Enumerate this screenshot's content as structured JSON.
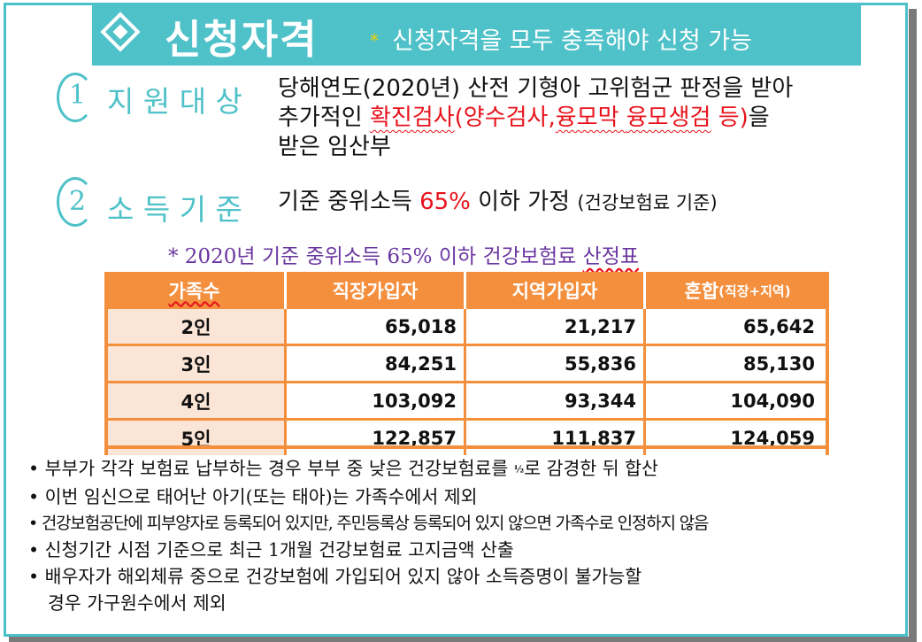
{
  "header": {
    "title": "신청자격",
    "star": "*",
    "subtitle": "신청자격을 모두 충족해야 신청 가능"
  },
  "sections": [
    {
      "number": "1",
      "label": "지 원 대 상",
      "line1": "당해연도(2020년) 산전 기형아 고위험군 판정을 받아",
      "line2_pre": "추가적인 ",
      "line2_red1": "확진검사",
      "line2_red2": "(양수검사,",
      "line2_red3": "융모막 ",
      "line2_red4": "융모생검",
      "line2_red5": " 등)",
      "line2_post": "을",
      "line3": "받은 임산부"
    },
    {
      "number": "2",
      "label": "소 득 기 준",
      "text_pre": "기준 중위소득 ",
      "text_red": "65%",
      "text_post": " 이하 가정 ",
      "text_note": "(건강보험료 기준)"
    }
  ],
  "table": {
    "title_pre": "* 2020년 기준 중위소득 65% 이하 건강보험료 ",
    "title_underlined": "산정표",
    "headers": [
      "가족수",
      "직장가입자",
      "지역가입자",
      "혼합"
    ],
    "header_note": "(직장+지역)",
    "rows": [
      [
        "2인",
        "65,018",
        "21,217",
        "65,642"
      ],
      [
        "3인",
        "84,251",
        "55,836",
        "85,130"
      ],
      [
        "4인",
        "103,092",
        "93,344",
        "104,090"
      ],
      [
        "5인",
        "122,857",
        "111,837",
        "124,059"
      ]
    ]
  },
  "notes": {
    "b1_pre": "부부가 각각 보험료 납부하는 경우 부부 중 낮은 건강보험료를 ",
    "b1_frac": "½",
    "b1_post": "로 감경한 뒤 합산",
    "b2": "이번 임신으로 태어난 아기(또는 태아)는 가족수에서 제외",
    "b3": "건강보험공단에 피부양자로 등록되어 있지만, 주민등록상 등록되어 있지 않으면 가족수로 인정하지 않음",
    "b4": "신청기간 시점 기준으로 최근 1개월 건강보험료 고지금액 산출",
    "b5_line1": "배우자가 해외체류 중으로 건강보험에 가입되어 있지 않아 소득증명이 불가능할",
    "b5_line2": "경우 가구원수에서 제외"
  },
  "colors": {
    "teal": "#4fc1c8",
    "orange": "#f48f3e",
    "peach": "#fbe5d6",
    "red": "#e8121b",
    "purple": "#6a36a0"
  }
}
